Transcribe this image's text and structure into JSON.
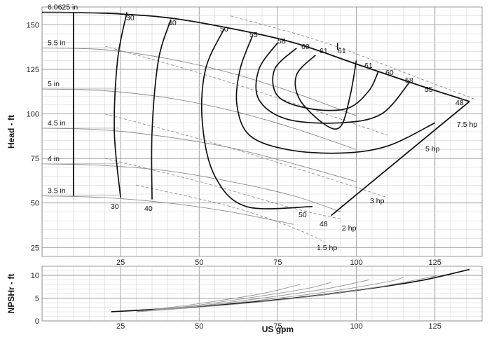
{
  "chart_data": [
    {
      "type": "line",
      "panel": "head",
      "ylabel": "Head - ft",
      "xlim": [
        0,
        140
      ],
      "ylim": [
        20,
        160
      ],
      "x_ticks": [
        25,
        50,
        75,
        100,
        125
      ],
      "y_ticks": [
        25,
        50,
        75,
        100,
        125,
        150
      ],
      "grid": true,
      "impeller_curves": [
        {
          "label": "6.0625 in",
          "x": [
            0,
            20,
            40,
            60,
            80,
            100,
            120,
            136
          ],
          "y": [
            157,
            156.5,
            154,
            148,
            140,
            128,
            116,
            107
          ]
        },
        {
          "label": "5.5 in",
          "x": [
            0,
            20,
            40,
            60,
            80,
            100
          ],
          "y": [
            137,
            136,
            131,
            123,
            112,
            99
          ]
        },
        {
          "label": "5 in",
          "x": [
            0,
            20,
            40,
            60,
            80,
            100
          ],
          "y": [
            114,
            113,
            109,
            102,
            92,
            80
          ]
        },
        {
          "label": "4.5 in",
          "x": [
            0,
            20,
            40,
            60,
            80,
            100
          ],
          "y": [
            92,
            91,
            87,
            81,
            72,
            62
          ]
        },
        {
          "label": "4 in",
          "x": [
            0,
            20,
            40,
            60,
            80,
            95
          ],
          "y": [
            72,
            71,
            68,
            62,
            54,
            45
          ]
        },
        {
          "label": "3.5 in",
          "x": [
            0,
            20,
            40,
            60,
            80
          ],
          "y": [
            54,
            53,
            50,
            45,
            38
          ]
        }
      ],
      "efficiency_contours": [
        {
          "label": "30",
          "x": [
            27,
            24,
            23,
            25
          ],
          "y": [
            157,
            130,
            90,
            53
          ]
        },
        {
          "label": "40",
          "x": [
            41,
            37,
            35,
            35
          ],
          "y": [
            153,
            130,
            90,
            52
          ]
        },
        {
          "label": "50",
          "x": [
            58,
            52,
            51,
            55,
            65,
            86
          ],
          "y": [
            148,
            125,
            95,
            65,
            48,
            48
          ]
        },
        {
          "label": "55",
          "x": [
            67,
            63,
            62,
            66,
            78,
            95,
            110,
            125
          ],
          "y": [
            144,
            125,
            105,
            88,
            80,
            78,
            82,
            95
          ]
        },
        {
          "label": "58",
          "x": [
            75,
            69,
            69,
            78,
            95,
            108,
            117
          ],
          "y": [
            140,
            125,
            108,
            97,
            95,
            100,
            118
          ]
        },
        {
          "label": "60",
          "x": [
            81,
            74,
            75,
            85,
            97,
            104,
            107
          ],
          "y": [
            137,
            125,
            110,
            103,
            103,
            113,
            124
          ]
        },
        {
          "label": "61",
          "x": [
            87,
            81,
            82,
            90,
            95,
            98,
            100
          ],
          "y": [
            133,
            122,
            108,
            94,
            93,
            110,
            130
          ]
        }
      ],
      "efficiency_labels": [
        "30",
        "40",
        "50",
        "55",
        "58",
        "60",
        "61",
        "61",
        "61",
        "60",
        "58",
        "55",
        "48",
        "50",
        "48",
        "30",
        "40"
      ],
      "power_lines": [
        {
          "label": "7.5 hp",
          "x": [
            60,
            90,
            120,
            138
          ],
          "y": [
            155,
            140,
            120,
            108
          ]
        },
        {
          "label": "5 hp",
          "x": [
            20,
            50,
            80,
            110
          ],
          "y": [
            138,
            123,
            106,
            88
          ]
        },
        {
          "label": "3 hp",
          "x": [
            20,
            50,
            80,
            110
          ],
          "y": [
            100,
            86,
            70,
            53
          ]
        },
        {
          "label": "2 hp",
          "x": [
            20,
            50,
            80,
            95
          ],
          "y": [
            75,
            62,
            47,
            41
          ]
        },
        {
          "label": "1.5 hp",
          "x": [
            30,
            60,
            80,
            90
          ],
          "y": [
            60,
            48,
            36,
            28
          ]
        }
      ],
      "boundary": {
        "x": [
          92,
          136
        ],
        "y": [
          43,
          107
        ]
      }
    },
    {
      "type": "line",
      "panel": "npsh",
      "ylabel": "NPSHr - ft",
      "xlabel": "US gpm",
      "xlim": [
        0,
        140
      ],
      "ylim": [
        0,
        12
      ],
      "x_ticks": [
        25,
        50,
        75,
        100,
        125
      ],
      "y_ticks": [
        0,
        5,
        10
      ],
      "series": [
        {
          "x": [
            22,
            40,
            60,
            80,
            100,
            120,
            136
          ],
          "y": [
            2,
            2.7,
            3.7,
            5,
            6.7,
            8.8,
            11.3
          ]
        },
        {
          "x": [
            30,
            50,
            70,
            90,
            110,
            126
          ],
          "y": [
            2,
            3,
            4.2,
            5.8,
            7.8,
            10
          ]
        },
        {
          "x": [
            30,
            50,
            70,
            90,
            110,
            115
          ],
          "y": [
            2,
            3.2,
            4.6,
            6.3,
            8.6,
            9.6
          ]
        },
        {
          "x": [
            30,
            50,
            70,
            90,
            104
          ],
          "y": [
            2,
            3.3,
            5,
            7,
            9
          ]
        },
        {
          "x": [
            30,
            50,
            70,
            85,
            92
          ],
          "y": [
            2,
            3.5,
            5.5,
            7.2,
            8.5
          ]
        },
        {
          "x": [
            30,
            50,
            70,
            82
          ],
          "y": [
            2,
            3.8,
            6,
            8
          ]
        }
      ]
    }
  ]
}
